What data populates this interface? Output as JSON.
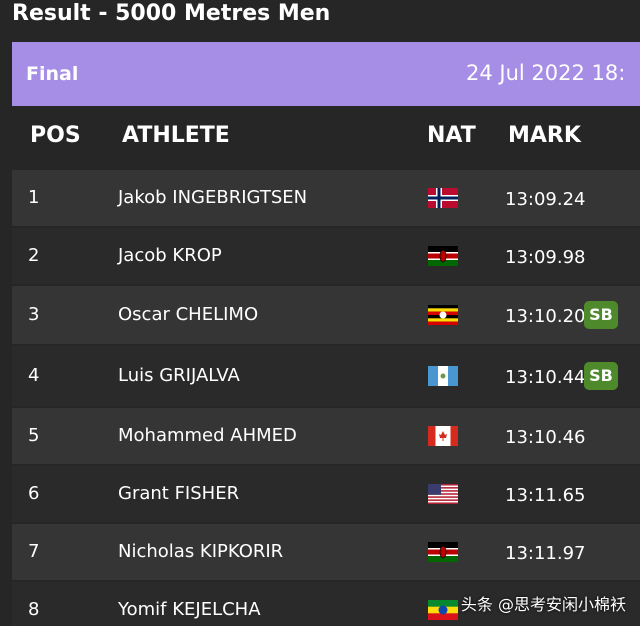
{
  "title": "Result - 5000 Metres Men",
  "header": {
    "status": "Final",
    "date": "24 Jul 2022 18:"
  },
  "columns": [
    "POS",
    "ATHLETE",
    "NAT",
    "MARK"
  ],
  "rows": [
    {
      "pos": "1",
      "athlete": "Jakob INGEBRIGTSEN",
      "mark": "13:09.24"
    },
    {
      "pos": "2",
      "athlete": "Jacob KROP",
      "mark": "13:09.98"
    },
    {
      "pos": "3",
      "athlete": "Oscar CHELIMO",
      "mark": "13:10.20",
      "note": "SB"
    },
    {
      "pos": "4",
      "athlete": "Luis GRIJALVA",
      "mark": "13:10.44",
      "note": "SB"
    },
    {
      "pos": "5",
      "athlete": "Mohammed AHMED",
      "mark": "13:10.46"
    },
    {
      "pos": "6",
      "athlete": "Grant FISHER",
      "mark": "13:11.65"
    },
    {
      "pos": "7",
      "athlete": "Nicholas KIPKORIR",
      "mark": "13:11.97"
    },
    {
      "pos": "8",
      "athlete": "Yomif KEJELCHA",
      "mark": ""
    }
  ],
  "watermark": "头条 @思考安闲小棉袄"
}
